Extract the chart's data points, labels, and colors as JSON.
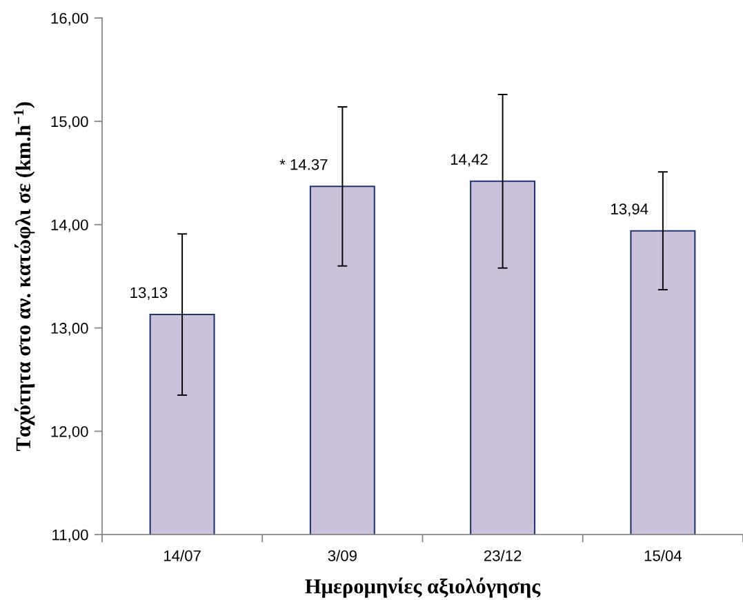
{
  "chart_data": {
    "type": "bar",
    "xlabel": "Ημερομηνίες αξιολόγησης",
    "ylabel": "Ταχύτητα στο αν. κατώφλι σε (km.h$^{−1}$)",
    "categories": [
      "14/07",
      "3/09",
      "23/12",
      "15/04"
    ],
    "values": [
      13.13,
      14.37,
      14.42,
      13.94
    ],
    "errors": [
      0.78,
      0.77,
      0.84,
      0.57
    ],
    "value_labels": [
      "13,13",
      "* 14.37",
      "14,42",
      "13,94"
    ],
    "color": "#ccc1da",
    "ylim": [
      11,
      16
    ],
    "yticks": [
      {
        "value": 11,
        "label": "11,00"
      },
      {
        "value": 12,
        "label": "12,00"
      },
      {
        "value": 13,
        "label": "13,00"
      },
      {
        "value": 14,
        "label": "14,00"
      },
      {
        "value": 15,
        "label": "15,00"
      },
      {
        "value": 16,
        "label": "16,00"
      }
    ]
  }
}
